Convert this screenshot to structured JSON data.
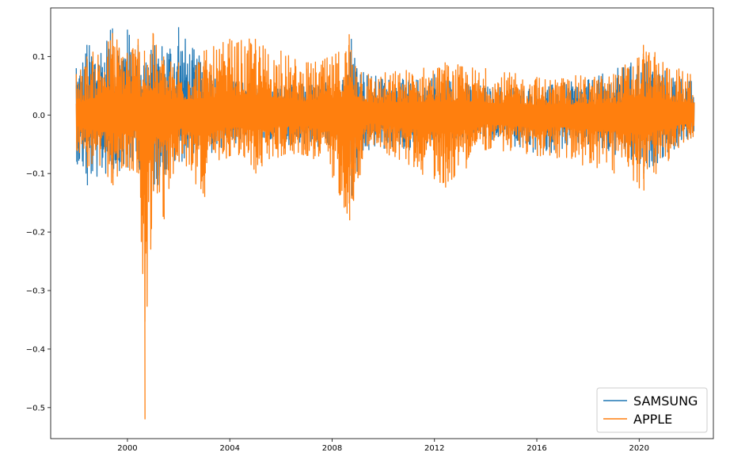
{
  "chart_data": {
    "type": "line",
    "title": "",
    "xlabel": "",
    "ylabel": "",
    "x_range": [
      "1997-12",
      "2022-03"
    ],
    "xlim": [
      1997.0,
      2022.9
    ],
    "ylim": [
      -0.553,
      0.183
    ],
    "x_ticks": [
      "2000",
      "2004",
      "2008",
      "2012",
      "2016",
      "2020"
    ],
    "y_ticks": [
      "0.1",
      "0.0",
      "−0.1",
      "−0.2",
      "−0.3",
      "−0.4",
      "−0.5"
    ],
    "grid": false,
    "legend_position": "bottom-right",
    "series": [
      {
        "name": "SAMSUNG",
        "color": "#1f77b4",
        "envelope": [
          {
            "x": "1998-01",
            "max": 0.08,
            "min": -0.08
          },
          {
            "x": "1998-06",
            "max": 0.12,
            "min": -0.12
          },
          {
            "x": "1999-06",
            "max": 0.148,
            "min": -0.1
          },
          {
            "x": "2000-01",
            "max": 0.146,
            "min": -0.09
          },
          {
            "x": "2000-06",
            "max": 0.12,
            "min": -0.09
          },
          {
            "x": "2001-01",
            "max": 0.12,
            "min": -0.13
          },
          {
            "x": "2002-01",
            "max": 0.15,
            "min": -0.08
          },
          {
            "x": "2003-01",
            "max": 0.09,
            "min": -0.08
          },
          {
            "x": "2004-01",
            "max": 0.06,
            "min": -0.05
          },
          {
            "x": "2006-01",
            "max": 0.05,
            "min": -0.05
          },
          {
            "x": "2008-06",
            "max": 0.06,
            "min": -0.06
          },
          {
            "x": "2008-10",
            "max": 0.13,
            "min": -0.138
          },
          {
            "x": "2009-06",
            "max": 0.07,
            "min": -0.06
          },
          {
            "x": "2011-01",
            "max": 0.06,
            "min": -0.06
          },
          {
            "x": "2012-01",
            "max": 0.07,
            "min": -0.05
          },
          {
            "x": "2014-01",
            "max": 0.05,
            "min": -0.04
          },
          {
            "x": "2016-01",
            "max": 0.05,
            "min": -0.07
          },
          {
            "x": "2018-01",
            "max": 0.06,
            "min": -0.05
          },
          {
            "x": "2020-03",
            "max": 0.1,
            "min": -0.1
          },
          {
            "x": "2022-01",
            "max": 0.06,
            "min": -0.04
          }
        ]
      },
      {
        "name": "APPLE",
        "color": "#ff7f0e",
        "envelope": [
          {
            "x": "1998-01",
            "max": 0.07,
            "min": -0.06
          },
          {
            "x": "1998-06",
            "max": 0.1,
            "min": -0.09
          },
          {
            "x": "1999-06",
            "max": 0.14,
            "min": -0.12
          },
          {
            "x": "2000-06",
            "max": 0.13,
            "min": -0.1
          },
          {
            "x": "2000-09",
            "max": 0.11,
            "min": -0.52
          },
          {
            "x": "2001-01",
            "max": 0.14,
            "min": -0.13
          },
          {
            "x": "2001-06",
            "max": 0.1,
            "min": -0.178
          },
          {
            "x": "2002-01",
            "max": 0.09,
            "min": -0.08
          },
          {
            "x": "2003-01",
            "max": 0.11,
            "min": -0.14
          },
          {
            "x": "2004-01",
            "max": 0.13,
            "min": -0.07
          },
          {
            "x": "2005-01",
            "max": 0.13,
            "min": -0.1
          },
          {
            "x": "2006-01",
            "max": 0.11,
            "min": -0.07
          },
          {
            "x": "2007-01",
            "max": 0.09,
            "min": -0.07
          },
          {
            "x": "2008-01",
            "max": 0.1,
            "min": -0.107
          },
          {
            "x": "2008-09",
            "max": 0.138,
            "min": -0.18
          },
          {
            "x": "2009-06",
            "max": 0.07,
            "min": -0.05
          },
          {
            "x": "2012-06",
            "max": 0.09,
            "min": -0.124
          },
          {
            "x": "2014-01",
            "max": 0.08,
            "min": -0.06
          },
          {
            "x": "2016-01",
            "max": 0.065,
            "min": -0.07
          },
          {
            "x": "2019-01",
            "max": 0.07,
            "min": -0.1
          },
          {
            "x": "2020-03",
            "max": 0.12,
            "min": -0.129
          },
          {
            "x": "2022-01",
            "max": 0.07,
            "min": -0.04
          }
        ]
      }
    ]
  }
}
